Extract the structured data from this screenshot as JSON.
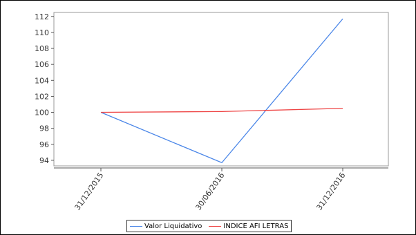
{
  "chart_data": {
    "type": "line",
    "x": [
      "31/12/2015",
      "30/06/2016",
      "31/12/2016"
    ],
    "series": [
      {
        "name": "Valor Liquidativo",
        "values": [
          100,
          93.7,
          111.7
        ],
        "color": "#4a86e8"
      },
      {
        "name": "INDICE AFI LETRAS",
        "values": [
          100,
          100.1,
          100.5
        ],
        "color": "#ee4444"
      }
    ],
    "ylim": [
      93.3,
      112.5
    ],
    "yticks": [
      94,
      96,
      98,
      100,
      102,
      104,
      106,
      108,
      110,
      112
    ],
    "grid": false,
    "legend": "bottom",
    "title": "",
    "xlabel": "",
    "ylabel": ""
  }
}
